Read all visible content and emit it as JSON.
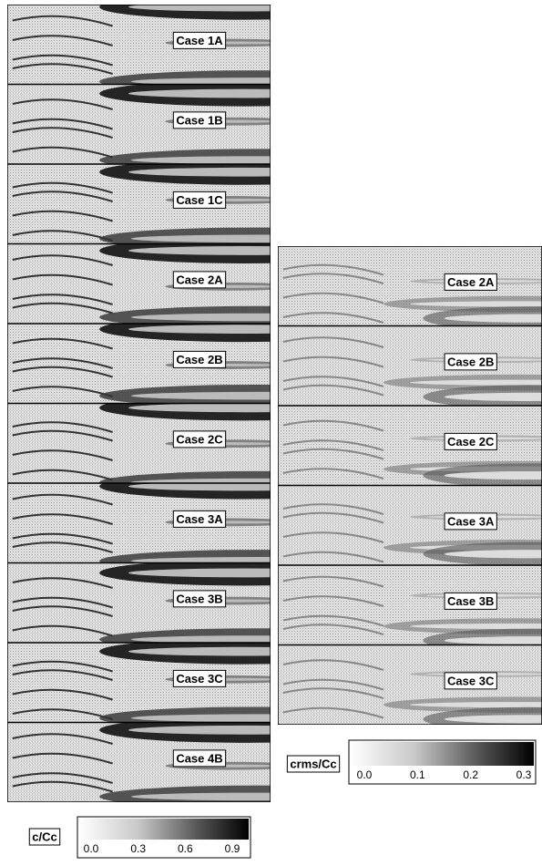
{
  "left_panels": [
    {
      "label": "Case 1A"
    },
    {
      "label": "Case 1B"
    },
    {
      "label": "Case 1C"
    },
    {
      "label": "Case 2A"
    },
    {
      "label": "Case 2B"
    },
    {
      "label": "Case 2C"
    },
    {
      "label": "Case 3A"
    },
    {
      "label": "Case 3B"
    },
    {
      "label": "Case 3C"
    },
    {
      "label": "Case 4B"
    }
  ],
  "right_panels": [
    {
      "label": "Case 2A"
    },
    {
      "label": "Case 2B"
    },
    {
      "label": "Case 2C"
    },
    {
      "label": "Case 3A"
    },
    {
      "label": "Case 3B"
    },
    {
      "label": "Case 3C"
    }
  ],
  "colorbars": [
    {
      "label": "c/Cc",
      "ticks": [
        {
          "value": 0,
          "label": "0.0"
        },
        {
          "value": 0.3,
          "label": "0.3"
        },
        {
          "value": 0.6,
          "label": "0.6"
        },
        {
          "value": 0.9,
          "label": "0.9"
        }
      ]
    },
    {
      "label": "crms/Cc",
      "ticks": [
        {
          "value": 0,
          "label": "0.0"
        },
        {
          "value": 0.1,
          "label": "0.1"
        },
        {
          "value": 0.2,
          "label": "0.2"
        },
        {
          "value": 0.3,
          "label": "0.3"
        }
      ]
    }
  ]
}
